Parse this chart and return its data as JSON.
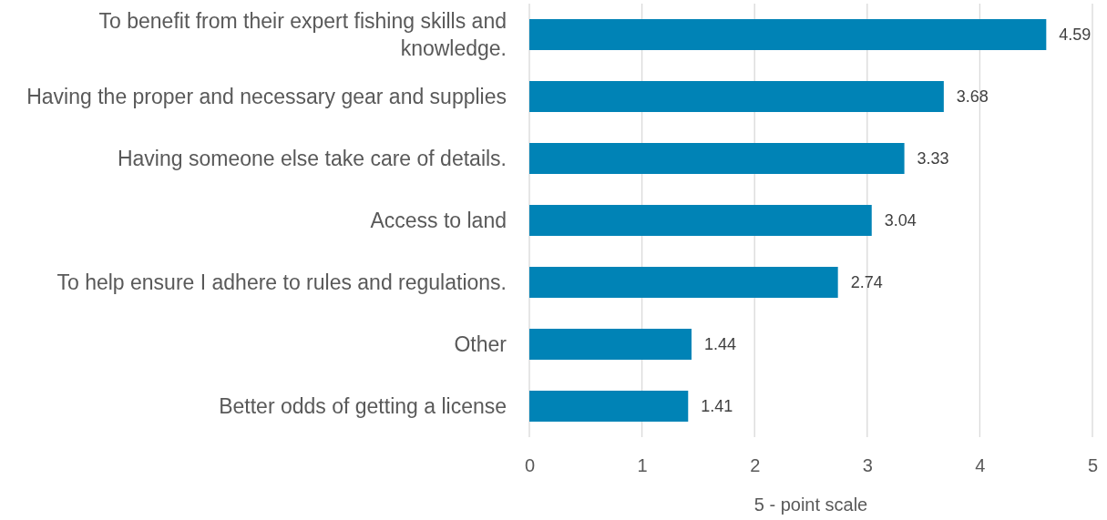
{
  "chart_data": {
    "type": "bar",
    "orientation": "horizontal",
    "xlabel": "5 - point scale",
    "categories": [
      "To benefit from their expert fishing skills and knowledge.",
      "Having the proper and necessary gear and supplies",
      "Having someone else take care of details.",
      "Access to land",
      "To help ensure I adhere to rules and regulations.",
      "Other",
      "Better odds of getting a license"
    ],
    "values": [
      4.59,
      3.68,
      3.33,
      3.04,
      2.74,
      1.44,
      1.41
    ],
    "color": "#0083b6",
    "xlim": [
      0,
      5
    ],
    "xticks": [
      0,
      1,
      2,
      3,
      4,
      5
    ],
    "grid": "x",
    "data_labels": true
  }
}
